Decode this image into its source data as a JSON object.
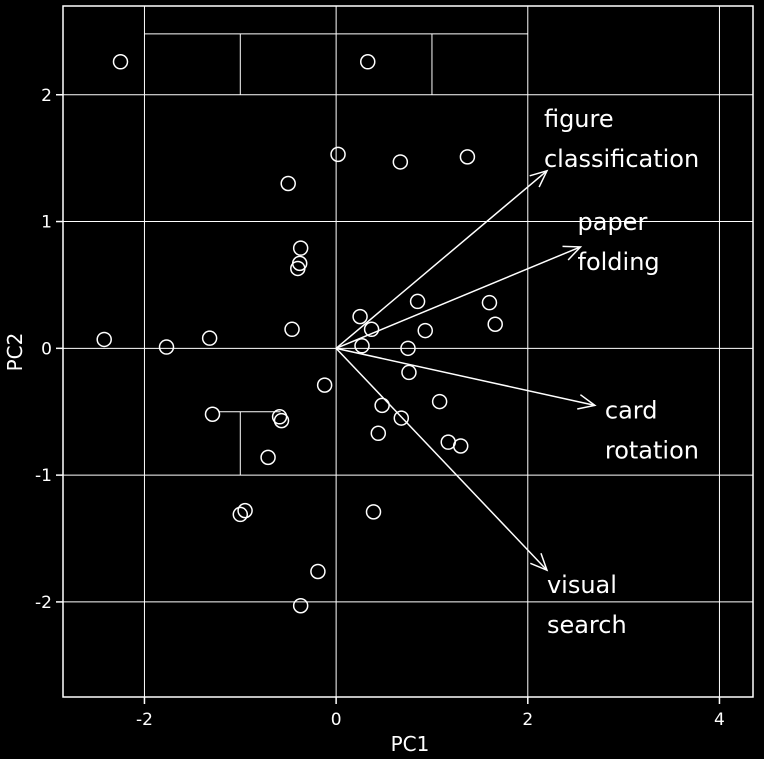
{
  "colors": {
    "background": "#000000",
    "foreground": "#ffffff"
  },
  "chart_data": {
    "type": "scatter",
    "title": "",
    "xlabel": "PC1",
    "ylabel": "PC2",
    "xlim": [
      -2.85,
      4.35
    ],
    "ylim": [
      -2.75,
      2.7
    ],
    "xticks": [
      -2,
      0,
      2,
      4
    ],
    "yticks": [
      -2,
      -1,
      0,
      1,
      2
    ],
    "grid": true,
    "points": [
      [
        -2.25,
        2.26
      ],
      [
        0.33,
        2.26
      ],
      [
        0.02,
        1.53
      ],
      [
        0.67,
        1.47
      ],
      [
        1.37,
        1.51
      ],
      [
        -0.5,
        1.3
      ],
      [
        -0.37,
        0.79
      ],
      [
        -0.38,
        0.67
      ],
      [
        -0.4,
        0.63
      ],
      [
        0.25,
        0.25
      ],
      [
        0.37,
        0.15
      ],
      [
        0.85,
        0.37
      ],
      [
        0.93,
        0.14
      ],
      [
        1.6,
        0.36
      ],
      [
        1.66,
        0.19
      ],
      [
        -0.46,
        0.15
      ],
      [
        -2.42,
        0.07
      ],
      [
        -1.77,
        0.01
      ],
      [
        -1.32,
        0.08
      ],
      [
        0.27,
        0.02
      ],
      [
        0.75,
        0.0
      ],
      [
        -0.12,
        -0.29
      ],
      [
        0.76,
        -0.19
      ],
      [
        -1.29,
        -0.52
      ],
      [
        -0.59,
        -0.54
      ],
      [
        -0.57,
        -0.57
      ],
      [
        0.48,
        -0.45
      ],
      [
        0.68,
        -0.55
      ],
      [
        1.08,
        -0.42
      ],
      [
        0.44,
        -0.67
      ],
      [
        1.17,
        -0.74
      ],
      [
        1.3,
        -0.77
      ],
      [
        -0.71,
        -0.86
      ],
      [
        -0.95,
        -1.28
      ],
      [
        -1.0,
        -1.31
      ],
      [
        0.39,
        -1.29
      ],
      [
        -0.19,
        -1.76
      ],
      [
        -0.37,
        -2.03
      ]
    ],
    "loadings": [
      {
        "name": "figure classification",
        "x": 2.2,
        "y": 1.4,
        "label_lines": [
          "figure",
          "classification"
        ]
      },
      {
        "name": "paper folding",
        "x": 2.55,
        "y": 0.8,
        "label_lines": [
          "paper",
          "folding"
        ]
      },
      {
        "name": "card rotation",
        "x": 2.7,
        "y": -0.45,
        "label_lines": [
          "card",
          "rotation"
        ]
      },
      {
        "name": "visual search",
        "x": 2.2,
        "y": -1.75,
        "label_lines": [
          "visual",
          "search"
        ]
      }
    ]
  }
}
